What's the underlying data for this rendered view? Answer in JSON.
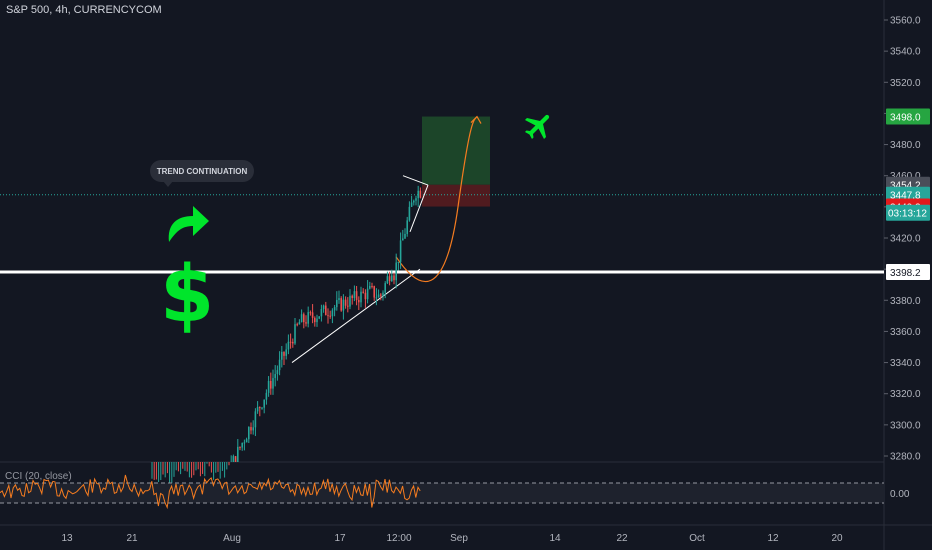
{
  "header": {
    "title": "S&P 500, 4h, CURRENCYCOM"
  },
  "annotations": {
    "callout_text": "TREND CONTINUATION",
    "dollar_symbol": "$",
    "icons": [
      "turn-arrow-icon",
      "dollar-icon",
      "airplane-icon"
    ],
    "colors": {
      "icon_green": "#00e52b",
      "projection_path": "#f57c20",
      "target_zone": "#1f4d2a",
      "stop_zone": "#5c1c1f"
    }
  },
  "oscillator": {
    "label": "CCI (20, close)",
    "zero_label": "0.00",
    "line_color": "#f57c20"
  },
  "chart_data": {
    "type": "candlestick",
    "title": "S&P 500, 4h, CURRENCYCOM",
    "xlabel": "",
    "ylabel": "",
    "ylim": [
      3270,
      3570
    ],
    "y_ticks": [
      3280,
      3300,
      3320,
      3340,
      3360,
      3380,
      3400,
      3420,
      3440,
      3460,
      3480,
      3500,
      3520,
      3540,
      3560
    ],
    "y_tick_labels": [
      "3280.0",
      "3300.0",
      "3320.0",
      "3340.0",
      "3360.0",
      "3380.0",
      "3400.0",
      "3420.0",
      "3440.0",
      "3460.0",
      "3480.0",
      "3500.0",
      "3520.0",
      "3540.0",
      "3560.0"
    ],
    "x_tick_labels": [
      "13",
      "21",
      "Aug",
      "17",
      "12:00",
      "Sep",
      "14",
      "22",
      "Oct",
      "12",
      "20"
    ],
    "price_labels": [
      {
        "value": 3498.0,
        "text": "3498.0",
        "color": "#26a541"
      },
      {
        "value": 3454.2,
        "text": "3454.2",
        "color": "#4a4e59"
      },
      {
        "value": 3447.8,
        "text": "3447.8",
        "color": "#26a69a"
      },
      {
        "value": 3440.2,
        "text": "3440.2",
        "color": "#e31a1c"
      },
      {
        "value": 3398.2,
        "text": "3398.2",
        "color": "#ffffff"
      }
    ],
    "countdown": "03:13:12",
    "horizontal_line": 3398.2,
    "current_price": 3447.8,
    "trade_setup": {
      "entry": 3454.2,
      "target": 3498.0,
      "stop": 3440.2
    },
    "grid": false
  }
}
